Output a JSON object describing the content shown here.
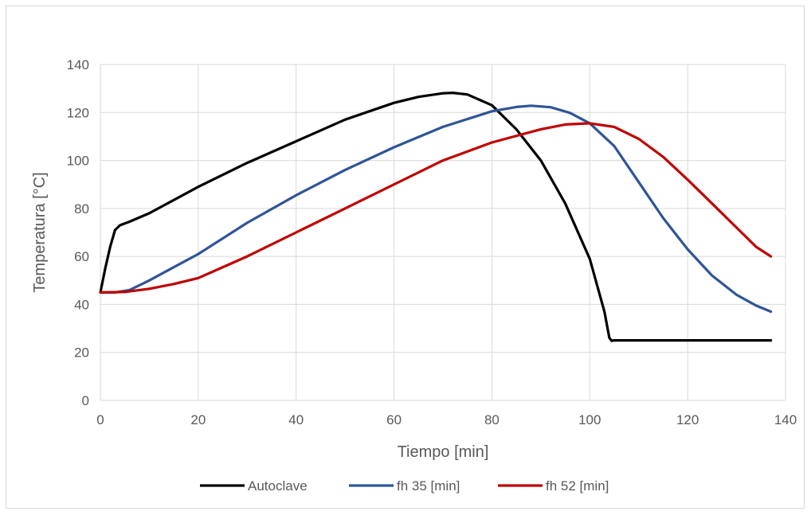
{
  "chart_data": {
    "type": "line",
    "title": "",
    "xlabel": "Tiempo [min]",
    "ylabel": "Temperatura [°C]",
    "xlim": [
      0,
      140
    ],
    "ylim": [
      0,
      140
    ],
    "xticks": [
      "0",
      "20",
      "40",
      "60",
      "80",
      "100",
      "120",
      "140"
    ],
    "yticks": [
      "0",
      "20",
      "40",
      "60",
      "80",
      "100",
      "120",
      "140"
    ],
    "grid": true,
    "legend_position": "bottom",
    "series": [
      {
        "name": "Autoclave",
        "color": "#000000",
        "points": [
          [
            0,
            45
          ],
          [
            1,
            55
          ],
          [
            2,
            64
          ],
          [
            3,
            71
          ],
          [
            4,
            73
          ],
          [
            6,
            74.5
          ],
          [
            10,
            78
          ],
          [
            20,
            89
          ],
          [
            30,
            99
          ],
          [
            40,
            108
          ],
          [
            50,
            117
          ],
          [
            60,
            124
          ],
          [
            65,
            126.5
          ],
          [
            70,
            128
          ],
          [
            72,
            128.2
          ],
          [
            75,
            127.5
          ],
          [
            80,
            123
          ],
          [
            85,
            113
          ],
          [
            90,
            100
          ],
          [
            95,
            82
          ],
          [
            100,
            59
          ],
          [
            103,
            37
          ],
          [
            104,
            26
          ],
          [
            104.5,
            24.8
          ],
          [
            105,
            25
          ],
          [
            120,
            25
          ],
          [
            137,
            25
          ]
        ]
      },
      {
        "name": "fh 35 [min]",
        "color": "#2f5597",
        "points": [
          [
            0,
            45
          ],
          [
            3,
            45
          ],
          [
            6,
            46
          ],
          [
            10,
            50
          ],
          [
            15,
            55.5
          ],
          [
            20,
            61
          ],
          [
            30,
            74
          ],
          [
            40,
            85.5
          ],
          [
            50,
            96
          ],
          [
            60,
            105.5
          ],
          [
            70,
            114
          ],
          [
            80,
            120.5
          ],
          [
            85,
            122.3
          ],
          [
            88,
            122.8
          ],
          [
            92,
            122.2
          ],
          [
            96,
            119.8
          ],
          [
            100,
            115.5
          ],
          [
            105,
            106
          ],
          [
            110,
            91
          ],
          [
            115,
            76
          ],
          [
            120,
            63
          ],
          [
            125,
            52
          ],
          [
            130,
            44
          ],
          [
            134,
            39.5
          ],
          [
            137,
            37
          ]
        ]
      },
      {
        "name": "fh 52 [min]",
        "color": "#c00000",
        "points": [
          [
            0,
            45
          ],
          [
            5,
            45.2
          ],
          [
            10,
            46.5
          ],
          [
            15,
            48.5
          ],
          [
            20,
            51
          ],
          [
            30,
            60
          ],
          [
            40,
            70
          ],
          [
            50,
            80
          ],
          [
            60,
            90
          ],
          [
            70,
            100
          ],
          [
            80,
            107.5
          ],
          [
            90,
            113
          ],
          [
            95,
            115
          ],
          [
            100,
            115.5
          ],
          [
            105,
            114
          ],
          [
            110,
            109
          ],
          [
            115,
            101.5
          ],
          [
            120,
            92
          ],
          [
            125,
            82
          ],
          [
            130,
            72
          ],
          [
            134,
            64
          ],
          [
            137,
            60
          ]
        ]
      }
    ]
  }
}
